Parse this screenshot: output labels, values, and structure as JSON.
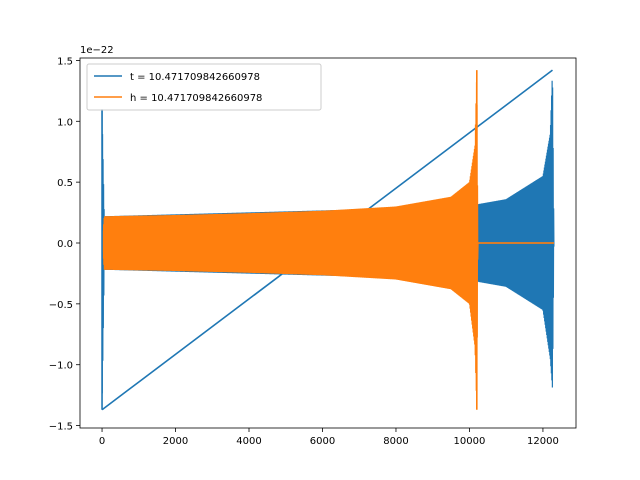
{
  "chart_data": {
    "type": "line",
    "title": "",
    "xlabel": "",
    "ylabel": "",
    "y_offset_label": "1e−22",
    "xlim": [
      -600,
      12900
    ],
    "ylim": [
      -1.52,
      1.52
    ],
    "x_ticks": [
      0,
      2000,
      4000,
      6000,
      8000,
      10000,
      12000
    ],
    "x_tick_labels": [
      "0",
      "2000",
      "4000",
      "6000",
      "8000",
      "10000",
      "12000"
    ],
    "y_ticks": [
      -1.5,
      -1.0,
      -0.5,
      0.0,
      0.5,
      1.0,
      1.5
    ],
    "y_tick_labels": [
      "−1.5",
      "−1.0",
      "−0.5",
      "0.0",
      "0.5",
      "1.0",
      "1.5"
    ],
    "grid": false,
    "legend_position": "top-left",
    "series": [
      {
        "name": "t = 10.471709842660978",
        "color": "#1f77b4",
        "description_points": {
          "x": [
            0,
            60,
            10000,
            10200,
            10250,
            11000,
            12000,
            12200,
            12260,
            12300
          ],
          "upper": [
            1.1,
            0.22,
            0.3,
            0.3,
            0.32,
            0.36,
            0.55,
            0.9,
            1.42,
            0.0
          ],
          "lower": [
            -1.37,
            -0.22,
            -0.3,
            -0.3,
            -0.32,
            -0.36,
            -0.55,
            -0.95,
            -1.2,
            0.0
          ]
        }
      },
      {
        "name": "h = 10.471709842660978",
        "color": "#ff7f0e",
        "description_points": {
          "x": [
            0,
            60,
            2000,
            4000,
            6000,
            8000,
            9500,
            10000,
            10150,
            10200,
            10230,
            12300
          ],
          "upper": [
            0.0,
            0.22,
            0.23,
            0.245,
            0.265,
            0.3,
            0.38,
            0.5,
            0.8,
            1.42,
            0.0,
            0.0
          ],
          "lower": [
            0.0,
            -0.22,
            -0.23,
            -0.245,
            -0.265,
            -0.3,
            -0.38,
            -0.5,
            -0.85,
            -1.37,
            0.0,
            0.0
          ]
        }
      }
    ]
  }
}
